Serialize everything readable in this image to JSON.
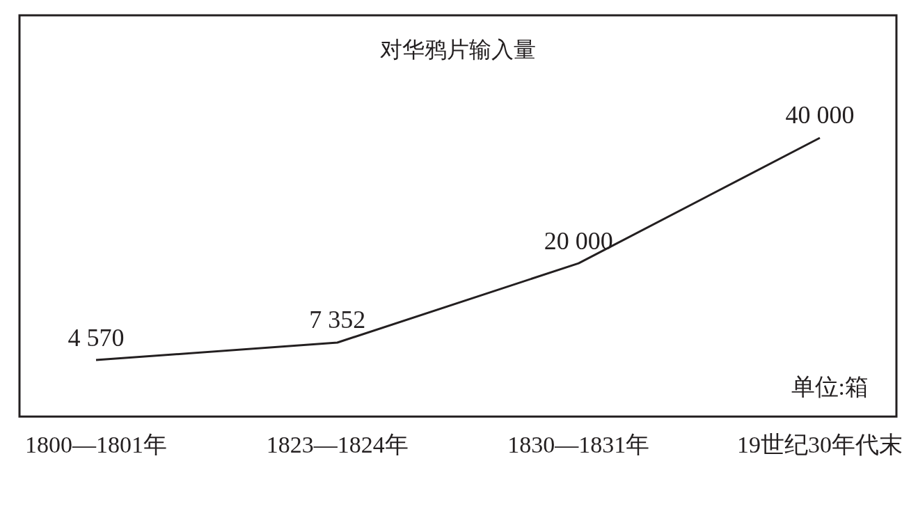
{
  "chart_data": {
    "type": "line",
    "title": "对华鸦片输入量",
    "annotations": [
      "单位:箱"
    ],
    "categories": [
      "1800—1801年",
      "1823—1824年",
      "1830—1831年",
      "19世纪30年代末"
    ],
    "series": [
      {
        "color": "#231f20",
        "values": [
          4570,
          7352,
          20000,
          40000
        ],
        "value_labels": [
          "4 570",
          "7 352",
          "20 000",
          "40 000"
        ]
      }
    ],
    "grid": false,
    "legend": false,
    "marker": "none",
    "line_style": "solid"
  }
}
